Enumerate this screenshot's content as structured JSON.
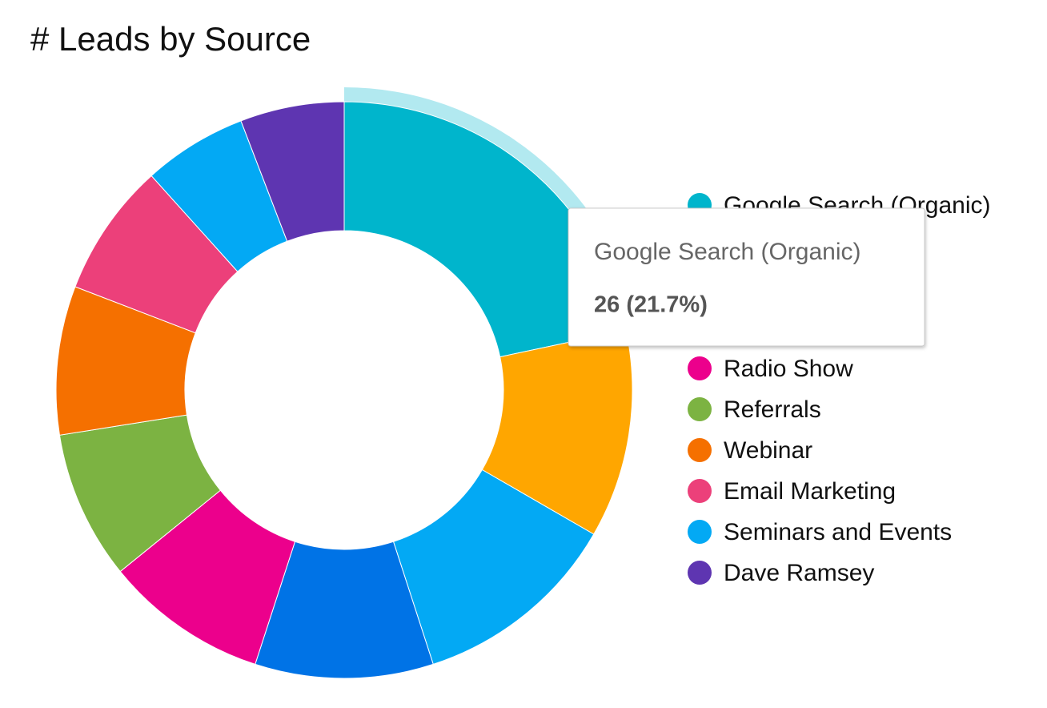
{
  "chart_data": {
    "type": "donut",
    "title": "# Leads by Source",
    "categories": [
      "Google Search (Organic)",
      null,
      null,
      null,
      "Radio Show",
      "Referrals",
      "Webinar",
      "Email Marketing",
      "Seminars and Events",
      "Dave Ramsey"
    ],
    "values": [
      26,
      14,
      14,
      12,
      11,
      10,
      10,
      9,
      7,
      7
    ],
    "colors": [
      "#00b5cc",
      "#ffa600",
      "#03a9f4",
      "#0073e6",
      "#ec008c",
      "#7cb342",
      "#f57000",
      "#ec407a",
      "#03a9f4",
      "#5e35b1"
    ],
    "tooltip": {
      "name": "Google Search (Organic)",
      "text": "26 (21.7%)"
    }
  }
}
